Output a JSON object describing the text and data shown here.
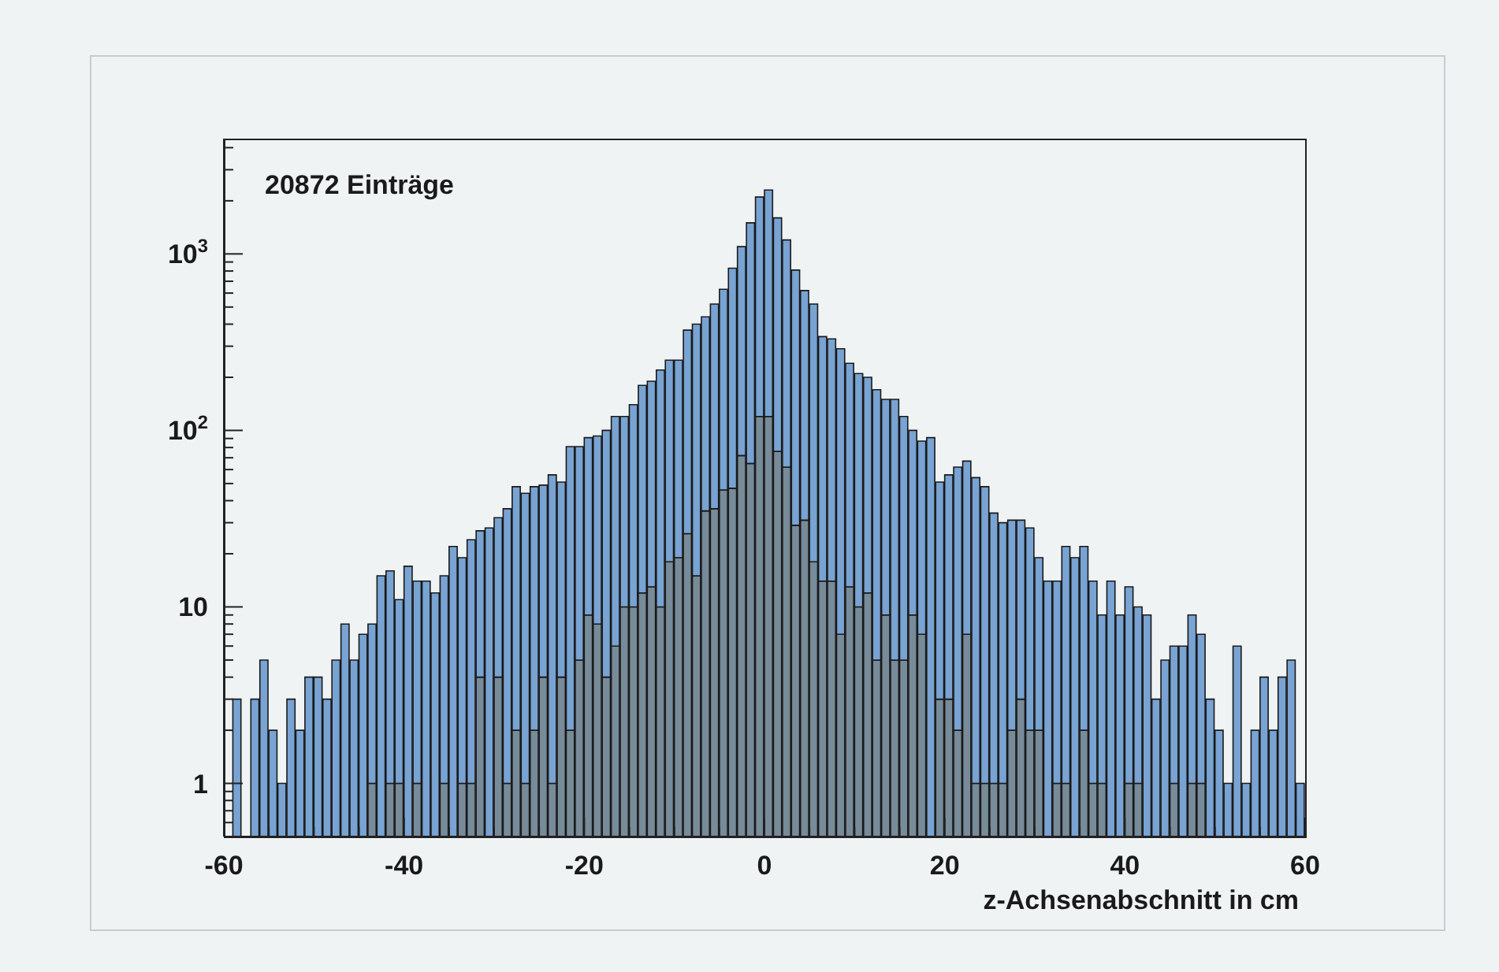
{
  "chart_data": {
    "type": "bar",
    "annotations": [
      "20872 Einträge"
    ],
    "xlabel": "z-Achsenabschnitt in cm",
    "x": [
      -58.5,
      -57.5,
      -56.5,
      -55.5,
      -54.5,
      -53.5,
      -52.5,
      -51.5,
      -50.5,
      -49.5,
      -48.5,
      -47.5,
      -46.5,
      -45.5,
      -44.5,
      -43.5,
      -42.5,
      -41.5,
      -40.5,
      -39.5,
      -38.5,
      -37.5,
      -36.5,
      -35.5,
      -34.5,
      -33.5,
      -32.5,
      -31.5,
      -30.5,
      -29.5,
      -28.5,
      -27.5,
      -26.5,
      -25.5,
      -24.5,
      -23.5,
      -22.5,
      -21.5,
      -20.5,
      -19.5,
      -18.5,
      -17.5,
      -16.5,
      -15.5,
      -14.5,
      -13.5,
      -12.5,
      -11.5,
      -10.5,
      -9.5,
      -8.5,
      -7.5,
      -6.5,
      -5.5,
      -4.5,
      -3.5,
      -2.5,
      -1.5,
      -0.5,
      0.5,
      1.5,
      2.5,
      3.5,
      4.5,
      5.5,
      6.5,
      7.5,
      8.5,
      9.5,
      10.5,
      11.5,
      12.5,
      13.5,
      14.5,
      15.5,
      16.5,
      17.5,
      18.5,
      19.5,
      20.5,
      21.5,
      22.5,
      23.5,
      24.5,
      25.5,
      26.5,
      27.5,
      28.5,
      29.5,
      30.5,
      31.5,
      32.5,
      33.5,
      34.5,
      35.5,
      36.5,
      37.5,
      38.5,
      39.5,
      40.5,
      41.5,
      42.5,
      43.5,
      44.5,
      45.5,
      46.5,
      47.5,
      48.5,
      49.5,
      50.5,
      51.5,
      52.5,
      53.5,
      54.5,
      55.5,
      56.5,
      57.5,
      58.5,
      59.5
    ],
    "series": [
      {
        "color": "#778b99",
        "values": [
          null,
          null,
          null,
          null,
          null,
          null,
          null,
          null,
          null,
          null,
          null,
          null,
          null,
          null,
          null,
          1,
          null,
          1,
          1,
          null,
          1,
          null,
          null,
          1,
          null,
          1,
          1,
          4,
          null,
          4,
          1,
          2,
          1,
          2,
          4,
          1,
          4,
          2,
          5,
          9,
          8,
          4,
          6,
          10,
          10,
          12,
          13,
          10,
          18,
          19,
          26,
          15,
          35,
          36,
          46,
          47,
          72,
          65,
          120,
          120,
          76,
          62,
          29,
          31,
          18,
          14,
          14,
          7,
          13,
          10,
          12,
          5,
          9,
          5,
          5,
          9,
          7,
          null,
          3,
          3,
          2,
          7,
          1,
          1,
          1,
          1,
          2,
          3,
          2,
          2,
          null,
          1,
          1,
          null,
          2,
          1,
          1,
          null,
          null,
          1,
          1,
          null,
          null,
          null,
          1,
          null,
          1,
          1,
          null,
          null,
          null,
          null,
          null,
          null,
          null,
          null,
          null,
          null,
          null
        ]
      },
      {
        "color": "#78a3d2",
        "values": [
          3,
          null,
          3,
          5,
          2,
          1,
          3,
          2,
          4,
          4,
          3,
          5,
          8,
          5,
          7,
          7,
          15,
          15,
          10,
          17,
          13,
          14,
          12,
          14,
          22,
          18,
          23,
          23,
          28,
          28,
          35,
          46,
          43,
          46,
          45,
          55,
          47,
          79,
          76,
          82,
          85,
          96,
          114,
          110,
          130,
          168,
          177,
          210,
          232,
          231,
          344,
          385,
          405,
          484,
          584,
          783,
          1028,
          1435,
          1980,
          2180,
          1524,
          1138,
          781,
          589,
          502,
          326,
          316,
          283,
          227,
          200,
          188,
          165,
          141,
          145,
          115,
          91,
          80,
          91,
          48,
          53,
          60,
          60,
          53,
          47,
          33,
          29,
          29,
          28,
          26,
          17,
          14,
          13,
          21,
          19,
          20,
          13,
          8,
          14,
          9,
          12,
          9,
          9,
          3,
          5,
          5,
          6,
          8,
          6,
          3,
          2,
          1,
          6,
          1,
          2,
          4,
          2,
          4,
          5,
          1
        ]
      }
    ],
    "stacked": true,
    "log": "y",
    "xlim": [
      -60,
      60
    ],
    "xticks": [
      -60,
      {
        "value": -55,
        "label": null
      },
      {
        "value": -50,
        "label": null
      },
      {
        "value": -45,
        "label": null
      },
      -40,
      {
        "value": -35,
        "label": null
      },
      {
        "value": -30,
        "label": null
      },
      {
        "value": -25,
        "label": null
      },
      -20,
      {
        "value": -15,
        "label": null
      },
      {
        "value": -10,
        "label": null
      },
      {
        "value": -5,
        "label": null
      },
      0,
      {
        "value": 5,
        "label": null
      },
      {
        "value": 10,
        "label": null
      },
      {
        "value": 15,
        "label": null
      },
      20,
      {
        "value": 25,
        "label": null
      },
      {
        "value": 30,
        "label": null
      },
      {
        "value": 35,
        "label": null
      },
      40,
      {
        "value": 45,
        "label": null
      },
      {
        "value": 50,
        "label": null
      },
      {
        "value": 55,
        "label": null
      },
      60
    ],
    "ylim": [
      0.5,
      4500
    ],
    "yticks": [
      {
        "value": 0.6,
        "label": null
      },
      {
        "value": 0.7,
        "label": null
      },
      {
        "value": 0.8,
        "label": null
      },
      {
        "value": 0.9,
        "label": null
      },
      1,
      {
        "value": 2,
        "label": null
      },
      {
        "value": 3,
        "label": null
      },
      {
        "value": 4,
        "label": null
      },
      {
        "value": 5,
        "label": null
      },
      {
        "value": 6,
        "label": null
      },
      {
        "value": 7,
        "label": null
      },
      {
        "value": 8,
        "label": null
      },
      {
        "value": 9,
        "label": null
      },
      10,
      {
        "value": 20,
        "label": null
      },
      {
        "value": 30,
        "label": null
      },
      {
        "value": 40,
        "label": null
      },
      {
        "value": 50,
        "label": null
      },
      {
        "value": 60,
        "label": null
      },
      {
        "value": 70,
        "label": null
      },
      {
        "value": 80,
        "label": null
      },
      {
        "value": 90,
        "label": null
      },
      {
        "value": 100,
        "label": "10$^{2}$"
      },
      {
        "value": 200,
        "label": null
      },
      {
        "value": 300,
        "label": null
      },
      {
        "value": 400,
        "label": null
      },
      {
        "value": 500,
        "label": null
      },
      {
        "value": 600,
        "label": null
      },
      {
        "value": 700,
        "label": null
      },
      {
        "value": 800,
        "label": null
      },
      {
        "value": 900,
        "label": null
      },
      {
        "value": 1000,
        "label": "10$^{3}$"
      },
      {
        "value": 2000,
        "label": null
      },
      {
        "value": 3000,
        "label": null
      },
      {
        "value": 4000,
        "label": null
      }
    ],
    "grid": false,
    "legend": false
  }
}
